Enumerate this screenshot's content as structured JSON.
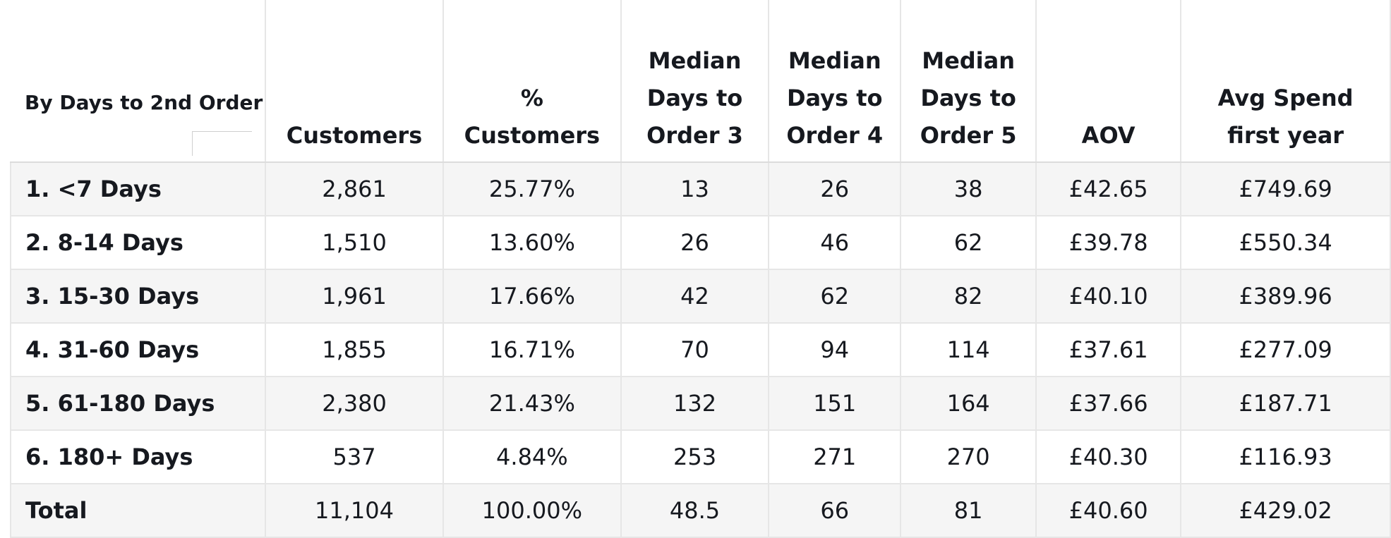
{
  "table": {
    "columns": [
      {
        "lines": [
          "By Days to 2nd Order"
        ]
      },
      {
        "lines": [
          "Customers"
        ]
      },
      {
        "lines": [
          "%",
          "Customers"
        ]
      },
      {
        "lines": [
          "Median",
          "Days to",
          "Order 3"
        ]
      },
      {
        "lines": [
          "Median",
          "Days to",
          "Order 4"
        ]
      },
      {
        "lines": [
          "Median",
          "Days to",
          "Order 5"
        ]
      },
      {
        "lines": [
          "AOV"
        ]
      },
      {
        "lines": [
          "Avg Spend",
          "first year"
        ]
      }
    ],
    "rows": [
      [
        "1. <7 Days",
        "2,861",
        "25.77%",
        "13",
        "26",
        "38",
        "£42.65",
        "£749.69"
      ],
      [
        "2. 8-14 Days",
        "1,510",
        "13.60%",
        "26",
        "46",
        "62",
        "£39.78",
        "£550.34"
      ],
      [
        "3. 15-30 Days",
        "1,961",
        "17.66%",
        "42",
        "62",
        "82",
        "£40.10",
        "£389.96"
      ],
      [
        "4. 31-60 Days",
        "1,855",
        "16.71%",
        "70",
        "94",
        "114",
        "£37.61",
        "£277.09"
      ],
      [
        "5. 61-180 Days",
        "2,380",
        "21.43%",
        "132",
        "151",
        "164",
        "£37.66",
        "£187.71"
      ],
      [
        "6. 180+ Days",
        "537",
        "4.84%",
        "253",
        "271",
        "270",
        "£40.30",
        "£116.93"
      ]
    ],
    "total": [
      "Total",
      "11,104",
      "100.00%",
      "48.5",
      "66",
      "81",
      "£40.60",
      "£429.02"
    ]
  }
}
